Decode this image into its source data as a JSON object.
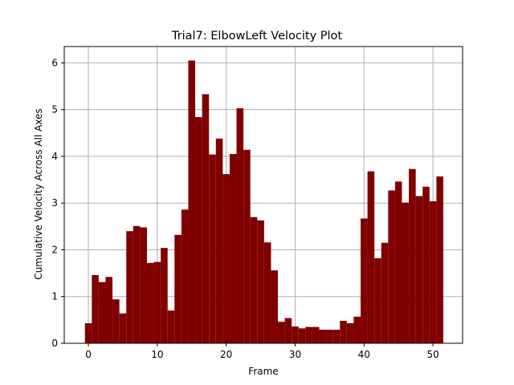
{
  "chart_data": {
    "type": "bar",
    "title": "Trial7: ElbowLeft Velocity Plot",
    "xlabel": "Frame",
    "ylabel": "Cumulative Velocity Across All Axes",
    "x": [
      0,
      1,
      2,
      3,
      4,
      5,
      6,
      7,
      8,
      9,
      10,
      11,
      12,
      13,
      14,
      15,
      16,
      17,
      18,
      19,
      20,
      21,
      22,
      23,
      24,
      25,
      26,
      27,
      28,
      29,
      30,
      31,
      32,
      33,
      34,
      35,
      36,
      37,
      38,
      39,
      40,
      41,
      42,
      43,
      44,
      45,
      46,
      47,
      48,
      49,
      50,
      51
    ],
    "values": [
      0.43,
      1.46,
      1.31,
      1.42,
      0.94,
      0.64,
      2.4,
      2.51,
      2.48,
      1.72,
      1.74,
      2.04,
      0.7,
      2.32,
      2.86,
      6.05,
      4.84,
      5.33,
      4.04,
      4.38,
      3.62,
      4.05,
      5.03,
      4.14,
      2.7,
      2.63,
      2.16,
      1.56,
      0.46,
      0.54,
      0.36,
      0.32,
      0.35,
      0.35,
      0.29,
      0.29,
      0.29,
      0.48,
      0.43,
      0.57,
      2.67,
      3.68,
      1.82,
      2.15,
      3.27,
      3.46,
      3.01,
      3.73,
      3.15,
      3.35,
      3.04,
      3.57
    ],
    "xlim": [
      -3.5,
      54.3
    ],
    "ylim": [
      0,
      6.35
    ],
    "xticks": [
      0,
      10,
      20,
      30,
      40,
      50
    ],
    "yticks": [
      0,
      1,
      2,
      3,
      4,
      5,
      6
    ],
    "grid": true,
    "bar_color": "#800000",
    "grid_color": "#b0b0b0"
  }
}
